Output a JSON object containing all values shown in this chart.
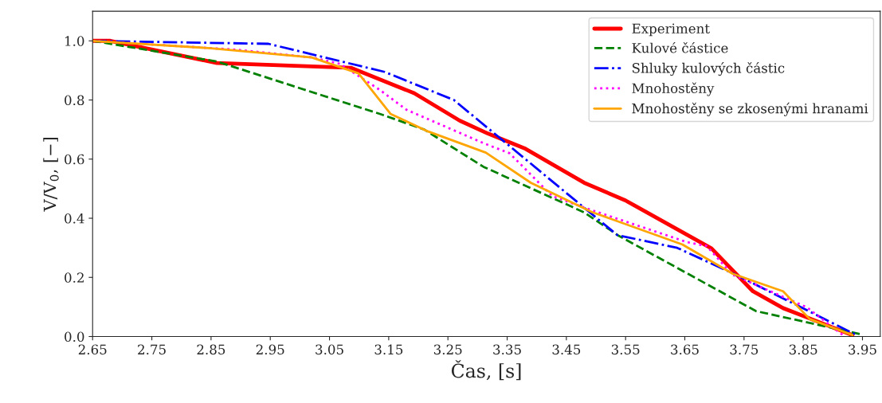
{
  "chart_data": {
    "type": "line",
    "xlabel": "Čas, [s]",
    "ylabel": "V/V$_{0}$, [−]",
    "xlim": [
      2.65,
      3.98
    ],
    "ylim": [
      0,
      1.1
    ],
    "xticks": [
      2.65,
      2.75,
      2.85,
      2.95,
      3.05,
      3.15,
      3.25,
      3.35,
      3.45,
      3.55,
      3.65,
      3.75,
      3.85,
      3.95
    ],
    "yticks": [
      {
        "value": 0,
        "label": "0.0"
      },
      {
        "value": 0.2,
        "label": "0.2"
      },
      {
        "value": 0.4,
        "label": "0.4"
      },
      {
        "value": 0.6,
        "label": "0.6"
      },
      {
        "value": 0.8,
        "label": "0.8"
      },
      {
        "value": 1,
        "label": "1.0"
      }
    ],
    "grid": false,
    "legend": "top right",
    "series": [
      {
        "name": "Experiment",
        "color": "#ff0000",
        "line_style": "solid",
        "x": [
          2.65,
          2.68,
          2.86,
          3.086,
          3.193,
          3.27,
          3.318,
          3.381,
          3.48,
          3.55,
          3.695,
          3.765,
          3.816,
          3.933
        ],
        "values": [
          1.0,
          1.0,
          0.925,
          0.909,
          0.823,
          0.73,
          0.686,
          0.635,
          0.52,
          0.46,
          0.298,
          0.153,
          0.096,
          0.005
        ]
      },
      {
        "name": "Kulové částice",
        "color": "#008000",
        "line_style": "dashed",
        "x": [
          2.65,
          2.86,
          3.135,
          3.21,
          3.31,
          3.48,
          3.539,
          3.77,
          3.852,
          3.946
        ],
        "values": [
          1.0,
          0.93,
          0.753,
          0.7,
          0.574,
          0.42,
          0.34,
          0.086,
          0.05,
          0.008
        ]
      },
      {
        "name": "Shluky kulových částic",
        "color": "#0000ff",
        "line_style": "dashdot",
        "x": [
          2.65,
          2.947,
          3.143,
          3.26,
          3.536,
          3.637,
          3.735,
          3.94
        ],
        "values": [
          1.0,
          0.99,
          0.895,
          0.8,
          0.343,
          0.3,
          0.21,
          0.005
        ]
      },
      {
        "name": "Mnohostěny",
        "color": "#ff00ff",
        "line_style": "dotted",
        "x": [
          2.65,
          2.893,
          3.02,
          3.068,
          3.135,
          3.18,
          3.31,
          3.354,
          3.426,
          3.489,
          3.654,
          3.687,
          3.73,
          3.856,
          3.92
        ],
        "values": [
          1.0,
          0.97,
          0.944,
          0.922,
          0.834,
          0.767,
          0.654,
          0.62,
          0.475,
          0.43,
          0.319,
          0.306,
          0.21,
          0.099,
          0.0
        ]
      },
      {
        "name": "Mnohostěny se zkosenými hranami",
        "color": "#ffa500",
        "line_style": "solid",
        "x": [
          2.65,
          2.85,
          3.02,
          3.099,
          3.153,
          3.216,
          3.314,
          3.39,
          3.493,
          3.646,
          3.731,
          3.816,
          3.861,
          3.933
        ],
        "values": [
          1.0,
          0.975,
          0.944,
          0.89,
          0.753,
          0.694,
          0.622,
          0.52,
          0.421,
          0.311,
          0.212,
          0.153,
          0.059,
          0.005
        ]
      }
    ]
  }
}
